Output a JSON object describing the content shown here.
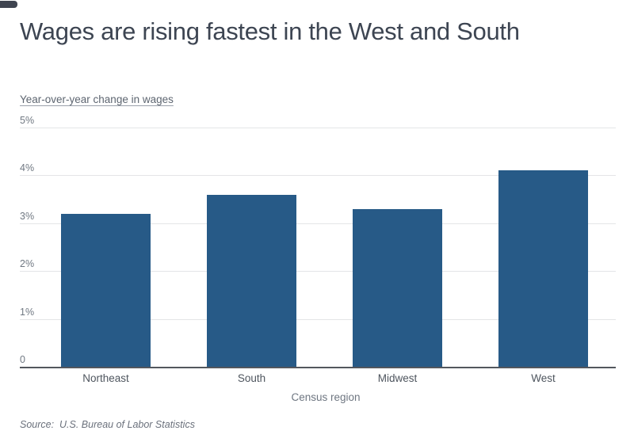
{
  "header": {
    "title": "Wages are rising fastest in the West and South"
  },
  "chart_data": {
    "type": "bar",
    "title": "Wages are rising fastest in the West and South",
    "subtitle": "Year-over-year change in wages",
    "categories": [
      "Northeast",
      "South",
      "Midwest",
      "West"
    ],
    "values": [
      3.2,
      3.6,
      3.3,
      4.1
    ],
    "xlabel": "Census region",
    "ylabel": "Year-over-year change in wages",
    "ylim": [
      0,
      5
    ],
    "yticks": [
      {
        "label": "5%",
        "value": 5
      },
      {
        "label": "4%",
        "value": 4
      },
      {
        "label": "3%",
        "value": 3
      },
      {
        "label": "2%",
        "value": 2
      },
      {
        "label": "1%",
        "value": 1
      },
      {
        "label": "0",
        "value": 0
      }
    ],
    "grid": "horizontal",
    "legend": "none",
    "bar_color": "#275a87",
    "gridline_color": "#e4e5e7",
    "axisline_color": "#53575e"
  },
  "footer": {
    "source": "Source:  U.S. Bureau of Labor Statistics"
  }
}
